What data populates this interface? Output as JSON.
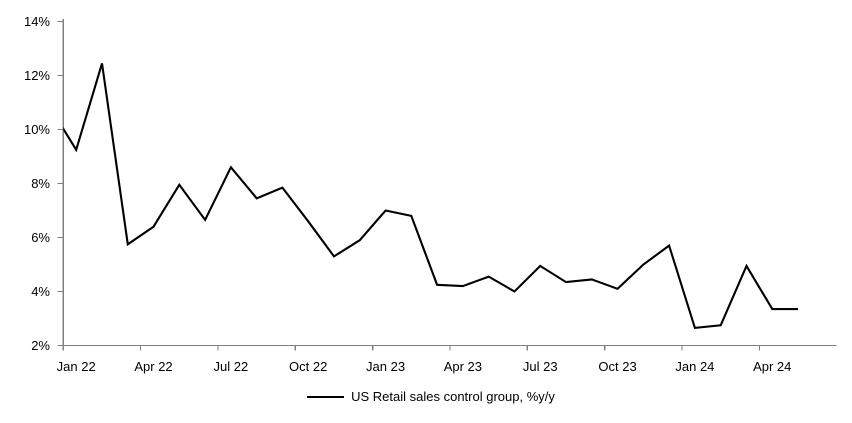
{
  "colors": {
    "line": "#000000",
    "axis": "#808080",
    "tick": "#808080",
    "text": "#000000",
    "background": "#ffffff"
  },
  "chart_data": {
    "type": "line",
    "title": "",
    "legend_position": "bottom_center",
    "grid": false,
    "x": [
      "Dec 21",
      "Jan 22",
      "Feb 22",
      "Mar 22",
      "Apr 22",
      "May 22",
      "Jun 22",
      "Jul 22",
      "Aug 22",
      "Sep 22",
      "Oct 22",
      "Nov 22",
      "Dec 22",
      "Jan 23",
      "Feb 23",
      "Mar 23",
      "Apr 23",
      "May 23",
      "Jun 23",
      "Jul 23",
      "Aug 23",
      "Sep 23",
      "Oct 23",
      "Nov 23",
      "Dec 23",
      "Jan 24",
      "Feb 24",
      "Mar 24",
      "Apr 24",
      "May 24"
    ],
    "first_point_clipped_by_y_axis": true,
    "series": [
      {
        "name": "US Retail sales control group, %y/y",
        "color": "#000000",
        "values": [
          10.8,
          9.25,
          12.45,
          5.75,
          6.4,
          7.95,
          6.65,
          8.6,
          7.45,
          7.85,
          6.6,
          5.3,
          5.9,
          7.0,
          6.8,
          4.25,
          4.2,
          4.55,
          4.0,
          4.95,
          4.35,
          4.45,
          4.1,
          5.0,
          5.7,
          2.65,
          2.75,
          4.95,
          3.35,
          3.35
        ]
      }
    ],
    "ylim": [
      2,
      14
    ],
    "yticks": [
      2,
      4,
      6,
      8,
      10,
      12,
      14
    ],
    "ytick_labels": [
      "2%",
      "4%",
      "6%",
      "8%",
      "10%",
      "12%",
      "14%"
    ],
    "xtick_labels": [
      "Jan 22",
      "Apr 22",
      "Jul 22",
      "Oct 22",
      "Jan 23",
      "Apr 23",
      "Jul 23",
      "Oct 23",
      "Jan 24",
      "Apr 24"
    ],
    "xlabel": "",
    "ylabel": ""
  }
}
